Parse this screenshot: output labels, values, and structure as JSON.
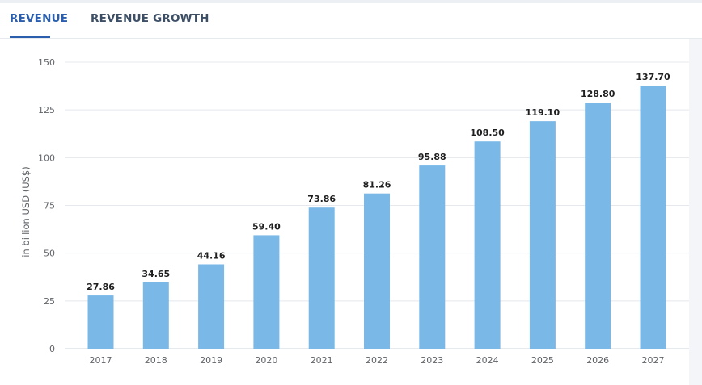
{
  "tabs": [
    {
      "label": "REVENUE",
      "active": true
    },
    {
      "label": "REVENUE GROWTH",
      "active": false
    }
  ],
  "colors": {
    "bar": "#7ab8e8",
    "active_tab": "#2b5fae"
  },
  "chart_data": {
    "type": "bar",
    "ylabel": "in billion USD (US$)",
    "ylim": [
      0,
      150
    ],
    "yticks": [
      0,
      25,
      50,
      75,
      100,
      125,
      150
    ],
    "grid": true,
    "categories": [
      "2017",
      "2018",
      "2019",
      "2020",
      "2021",
      "2022",
      "2023",
      "2024",
      "2025",
      "2026",
      "2027"
    ],
    "values": [
      27.86,
      34.65,
      44.16,
      59.4,
      73.86,
      81.26,
      95.88,
      108.5,
      119.1,
      128.8,
      137.7
    ],
    "value_labels": [
      "27.86",
      "34.65",
      "44.16",
      "59.40",
      "73.86",
      "81.26",
      "95.88",
      "108.50",
      "119.10",
      "128.80",
      "137.70"
    ]
  }
}
